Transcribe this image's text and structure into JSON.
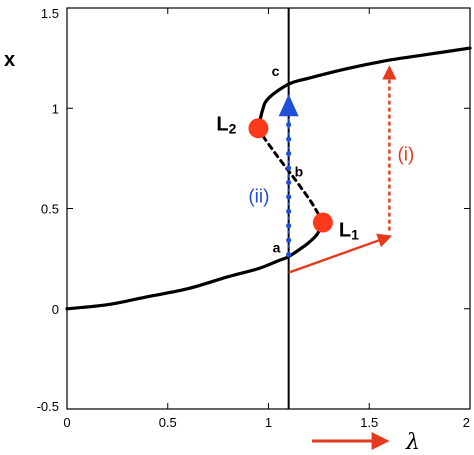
{
  "chart_data": {
    "type": "line",
    "title": "",
    "ylabel": "x",
    "xlabel_symbol": "λ",
    "xlim": [
      0,
      2
    ],
    "ylim": [
      -0.5,
      1.5
    ],
    "x_ticks": [
      "0",
      "0.5",
      "1",
      "1.5",
      "2"
    ],
    "y_ticks": [
      "-0.5",
      "0",
      "0.5",
      "1",
      "1.5"
    ],
    "grid": false,
    "lower_branch": [
      [
        0,
        0
      ],
      [
        0.2,
        0.02
      ],
      [
        0.4,
        0.06
      ],
      [
        0.6,
        0.1
      ],
      [
        0.8,
        0.16
      ],
      [
        0.95,
        0.2
      ],
      [
        1.05,
        0.24
      ],
      [
        1.1,
        0.26
      ],
      [
        1.16,
        0.3
      ],
      [
        1.2,
        0.33
      ],
      [
        1.24,
        0.37
      ],
      [
        1.27,
        0.43
      ]
    ],
    "unstable_branch": [
      [
        1.27,
        0.43
      ],
      [
        1.22,
        0.52
      ],
      [
        1.15,
        0.62
      ],
      [
        1.09,
        0.7
      ],
      [
        1.03,
        0.78
      ],
      [
        0.98,
        0.85
      ],
      [
        0.95,
        0.9
      ]
    ],
    "upper_branch": [
      [
        0.95,
        0.9
      ],
      [
        0.97,
        0.99
      ],
      [
        1.0,
        1.05
      ],
      [
        1.1,
        1.12
      ],
      [
        1.2,
        1.15
      ],
      [
        1.4,
        1.2
      ],
      [
        1.6,
        1.24
      ],
      [
        1.8,
        1.27
      ],
      [
        2.0,
        1.3
      ]
    ],
    "vertical_line_x": 1.1,
    "fold_points": [
      {
        "label": "L",
        "subscript": "2",
        "x": 0.95,
        "y": 0.9
      },
      {
        "label": "L",
        "subscript": "1",
        "x": 1.27,
        "y": 0.43
      }
    ],
    "point_labels": [
      {
        "text": "a",
        "x": 1.1,
        "y": 0.26
      },
      {
        "text": "b",
        "x": 1.1,
        "y": 0.68
      },
      {
        "text": "c",
        "x": 1.1,
        "y": 1.12
      }
    ],
    "path_i": {
      "label": "(i)",
      "x0": 1.1,
      "y0": 0.18,
      "x1": 1.6,
      "y1": 0.36,
      "x2": 1.6,
      "y2": 1.2
    },
    "path_ii": {
      "label": "(ii)",
      "x": 1.1,
      "y0": 0.27,
      "y1": 1.05
    },
    "colors": {
      "curve": "#000000",
      "fold": "#ff3a1c",
      "path_i": "#e53a1e",
      "path_ii": "#1f4fd8"
    }
  }
}
